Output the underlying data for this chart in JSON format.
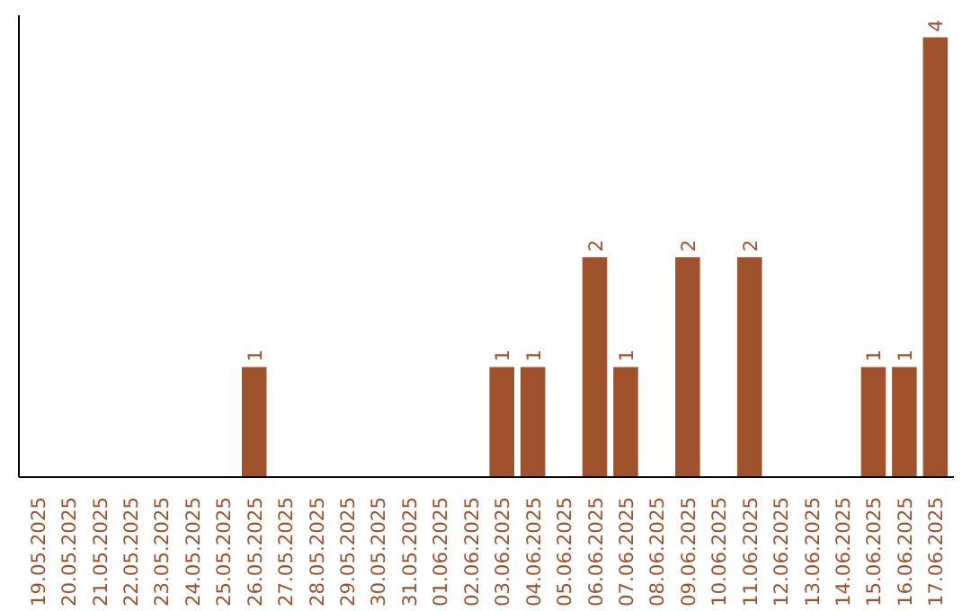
{
  "chart_data": {
    "type": "bar",
    "categories": [
      "19.05.2025",
      "20.05.2025",
      "21.05.2025",
      "22.05.2025",
      "23.05.2025",
      "24.05.2025",
      "25.05.2025",
      "26.05.2025",
      "27.05.2025",
      "28.05.2025",
      "29.05.2025",
      "30.05.2025",
      "31.05.2025",
      "01.06.2025",
      "02.06.2025",
      "03.06.2025",
      "04.06.2025",
      "05.06.2025",
      "06.06.2025",
      "07.06.2025",
      "08.06.2025",
      "09.06.2025",
      "10.06.2025",
      "11.06.2025",
      "12.06.2025",
      "13.06.2025",
      "14.06.2025",
      "15.06.2025",
      "16.06.2025",
      "17.06.2025"
    ],
    "values": [
      0,
      0,
      0,
      0,
      0,
      0,
      0,
      1,
      0,
      0,
      0,
      0,
      0,
      0,
      0,
      1,
      1,
      0,
      2,
      1,
      0,
      2,
      0,
      2,
      0,
      0,
      0,
      1,
      1,
      4
    ],
    "value_labels": [
      null,
      null,
      null,
      null,
      null,
      null,
      null,
      "1",
      null,
      null,
      null,
      null,
      null,
      null,
      null,
      "1",
      "1",
      null,
      "2",
      "1",
      null,
      "2",
      null,
      "2",
      null,
      null,
      null,
      "1",
      "1",
      "4"
    ],
    "color": "#a0522d"
  }
}
